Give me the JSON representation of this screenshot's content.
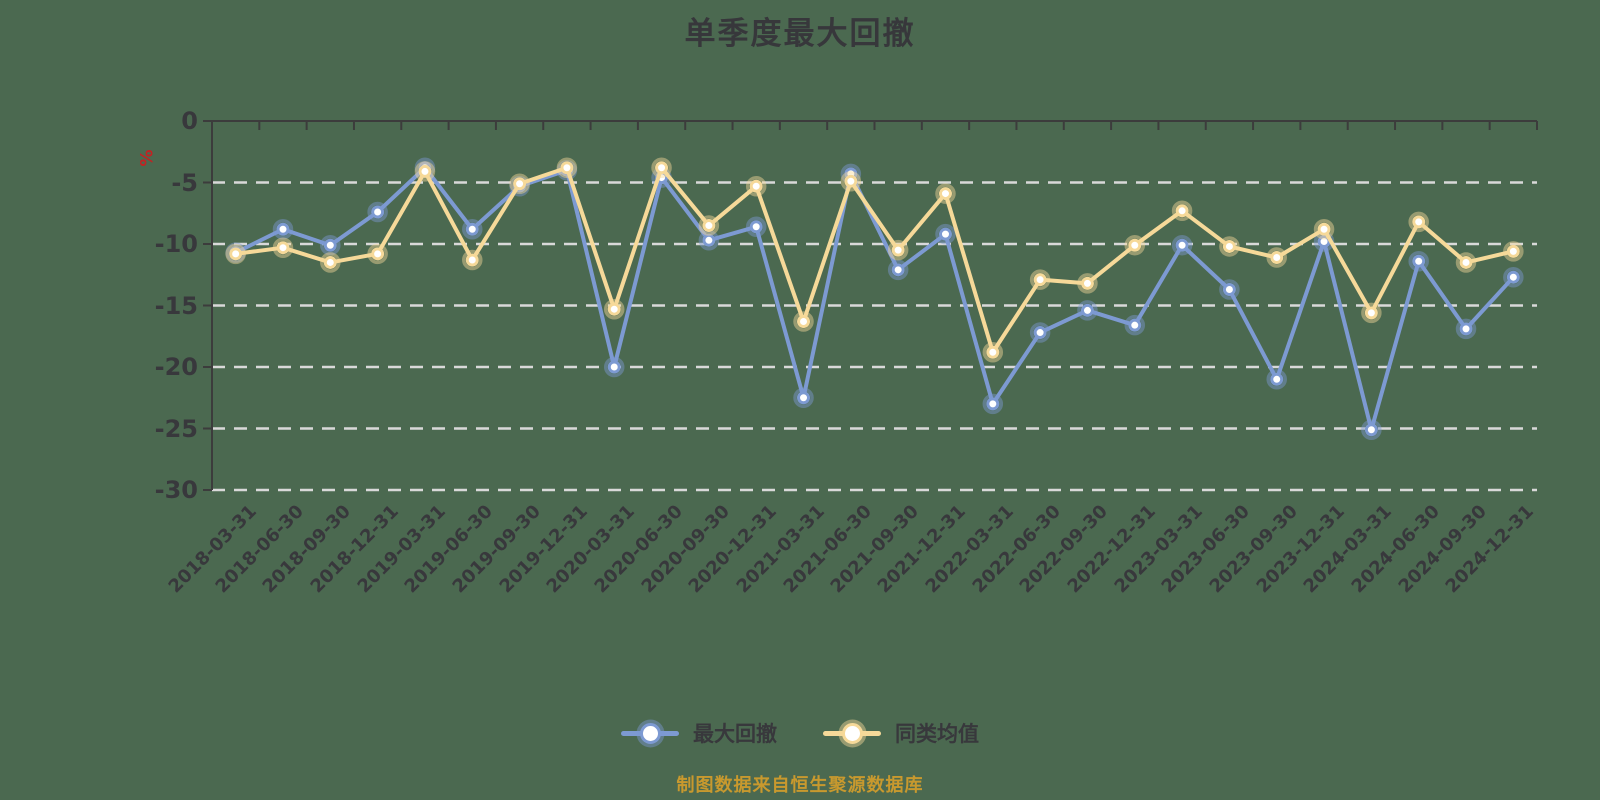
{
  "title": "单季度最大回撤",
  "y_axis": {
    "unit": "%",
    "tick_labels": [
      "0",
      "-5",
      "-10",
      "-15",
      "-20",
      "-25",
      "-30"
    ],
    "tick_values": [
      0,
      -5,
      -10,
      -15,
      -20,
      -25,
      -30
    ]
  },
  "footer": "制图数据来自恒生聚源数据库",
  "colors": {
    "background": "#4b6950",
    "axis": "#3c3c3c",
    "grid": "#d9d9d9",
    "text": "#38383c",
    "title": "#37373b",
    "footer": "#c8992e",
    "unit": "#c32222",
    "marker_fill": "#ffffff"
  },
  "chart_data": {
    "type": "line",
    "title": "单季度最大回撤",
    "xlabel": "",
    "ylabel": "%",
    "ylim": [
      -30,
      0
    ],
    "grid": "horizontal-dashed",
    "legend_position": "bottom",
    "x": [
      "2018-03-31",
      "2018-06-30",
      "2018-09-30",
      "2018-12-31",
      "2019-03-31",
      "2019-06-30",
      "2019-09-30",
      "2019-12-31",
      "2020-03-31",
      "2020-06-30",
      "2020-09-30",
      "2020-12-31",
      "2021-03-31",
      "2021-06-30",
      "2021-09-30",
      "2021-12-31",
      "2022-03-31",
      "2022-06-30",
      "2022-09-30",
      "2022-12-31",
      "2023-03-31",
      "2023-06-30",
      "2023-09-30",
      "2023-12-31",
      "2024-03-31",
      "2024-06-30",
      "2024-09-30",
      "2024-12-31"
    ],
    "series": [
      {
        "name": "最大回撤",
        "color": "#7d9ad2",
        "values": [
          -10.7,
          -8.8,
          -10.1,
          -7.4,
          -3.8,
          -8.8,
          -5.3,
          -4.0,
          -20.0,
          -4.6,
          -9.7,
          -8.6,
          -22.5,
          -4.3,
          -12.1,
          -9.2,
          -23.0,
          -17.2,
          -15.4,
          -16.6,
          -10.1,
          -13.7,
          -21.0,
          -9.8,
          -25.1,
          -11.4,
          -16.9,
          -12.7
        ]
      },
      {
        "name": "同类均值",
        "color": "#f6d999",
        "values": [
          -10.8,
          -10.3,
          -11.5,
          -10.8,
          -4.1,
          -11.3,
          -5.1,
          -3.8,
          -15.3,
          -3.8,
          -8.5,
          -5.3,
          -16.3,
          -4.9,
          -10.5,
          -5.9,
          -18.8,
          -12.9,
          -13.2,
          -10.1,
          -7.3,
          -10.2,
          -11.1,
          -8.8,
          -15.6,
          -8.2,
          -11.5,
          -10.6
        ]
      }
    ]
  }
}
